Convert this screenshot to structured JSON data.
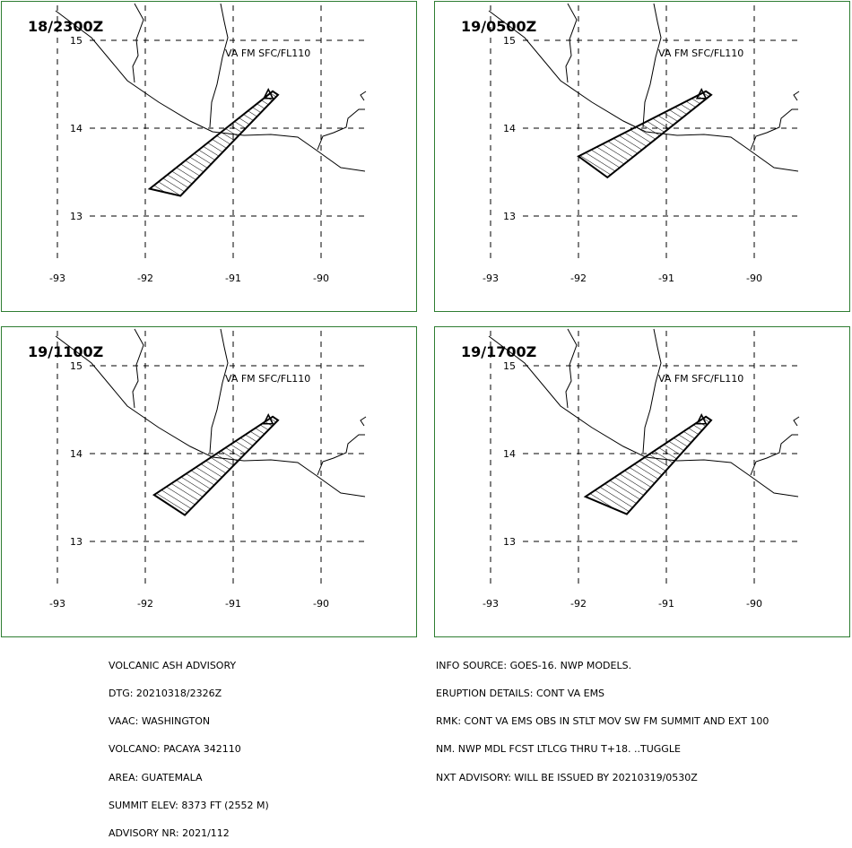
{
  "panels": [
    {
      "time_label": "18/2300Z",
      "level_label": "VA FM SFC/FL110",
      "ash_polygon": [
        [
          -90.55,
          14.42
        ],
        [
          -90.49,
          14.38
        ],
        [
          -91.6,
          13.23
        ],
        [
          -91.95,
          13.31
        ]
      ]
    },
    {
      "time_label": "19/0500Z",
      "level_label": "VA FM SFC/FL110",
      "ash_polygon": [
        [
          -90.55,
          14.42
        ],
        [
          -90.49,
          14.38
        ],
        [
          -91.67,
          13.44
        ],
        [
          -92.0,
          13.68
        ]
      ]
    },
    {
      "time_label": "19/1100Z",
      "level_label": "VA FM SFC/FL110",
      "ash_polygon": [
        [
          -90.55,
          14.42
        ],
        [
          -90.49,
          14.38
        ],
        [
          -91.55,
          13.3
        ],
        [
          -91.9,
          13.53
        ]
      ]
    },
    {
      "time_label": "19/1700Z",
      "level_label": "VA FM SFC/FL110",
      "ash_polygon": [
        [
          -90.55,
          14.42
        ],
        [
          -90.49,
          14.38
        ],
        [
          -91.45,
          13.31
        ],
        [
          -91.92,
          13.51
        ]
      ]
    }
  ],
  "axes": {
    "lon_labels": [
      "-93",
      "-92",
      "-91",
      "-90"
    ],
    "lat_labels": [
      "15",
      "14",
      "13"
    ]
  },
  "volcano": {
    "name": "PACAYA",
    "lat": 14.38,
    "lon": -90.6,
    "icon": "volcano-triangle-icon"
  },
  "advisory_left": [
    "VOLCANIC ASH ADVISORY",
    "DTG: 20210318/2326Z",
    "VAAC: WASHINGTON",
    "VOLCANO: PACAYA 342110",
    "AREA: GUATEMALA",
    "SUMMIT ELEV: 8373 FT (2552 M)",
    "ADVISORY NR: 2021/112"
  ],
  "advisory_right": [
    "INFO SOURCE: GOES-16. NWP MODELS.",
    "ERUPTION DETAILS: CONT VA EMS",
    "RMK: CONT VA EMS OBS IN STLT MOV SW FM SUMMIT AND EXT 100",
    "NM. NWP MDL FCST LTLCG THRU T+18. ..TUGGLE",
    "NXT ADVISORY: WILL BE ISSUED BY 20210319/0530Z"
  ],
  "colors": {
    "panel_border": "#2e7d32",
    "lines": "#000000"
  }
}
